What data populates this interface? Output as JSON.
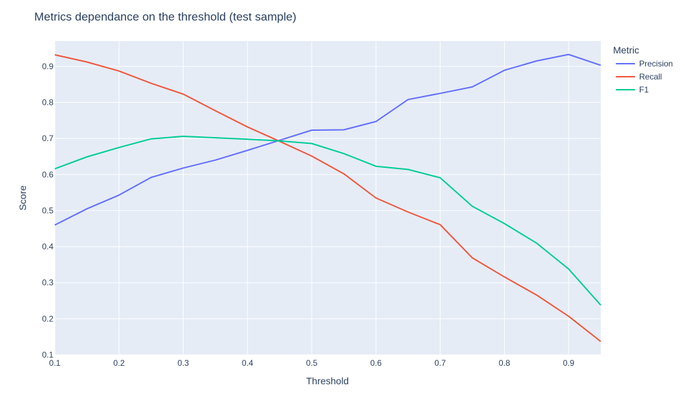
{
  "chart_data": {
    "type": "line",
    "title": "Metrics dependance on the threshold (test sample)",
    "xlabel": "Threshold",
    "ylabel": "Score",
    "xlim": [
      0.1,
      0.95
    ],
    "ylim": [
      0.1,
      0.97
    ],
    "x_ticks": [
      "0.1",
      "0.2",
      "0.3",
      "0.4",
      "0.5",
      "0.6",
      "0.7",
      "0.8",
      "0.9"
    ],
    "y_ticks": [
      "0.1",
      "0.2",
      "0.3",
      "0.4",
      "0.5",
      "0.6",
      "0.7",
      "0.8",
      "0.9"
    ],
    "grid": true,
    "legend_title": "Metric",
    "legend_position": "top-right outside",
    "x": [
      0.1,
      0.15,
      0.2,
      0.25,
      0.3,
      0.35,
      0.4,
      0.45,
      0.5,
      0.55,
      0.6,
      0.65,
      0.7,
      0.75,
      0.8,
      0.85,
      0.9,
      0.95
    ],
    "series": [
      {
        "name": "Precision",
        "color": "#636efa",
        "values": [
          0.46,
          0.505,
          0.543,
          0.592,
          0.618,
          0.64,
          0.667,
          0.695,
          0.723,
          0.724,
          0.747,
          0.808,
          0.825,
          0.843,
          0.889,
          0.915,
          0.933,
          0.903
        ]
      },
      {
        "name": "Recall",
        "color": "#ef553b",
        "values": [
          0.932,
          0.912,
          0.887,
          0.853,
          0.823,
          0.777,
          0.732,
          0.692,
          0.651,
          0.602,
          0.535,
          0.496,
          0.461,
          0.369,
          0.316,
          0.266,
          0.207,
          0.137
        ]
      },
      {
        "name": "F1",
        "color": "#00cc96",
        "values": [
          0.616,
          0.649,
          0.675,
          0.699,
          0.706,
          0.702,
          0.698,
          0.693,
          0.686,
          0.658,
          0.623,
          0.614,
          0.591,
          0.512,
          0.464,
          0.41,
          0.338,
          0.238
        ]
      }
    ]
  }
}
